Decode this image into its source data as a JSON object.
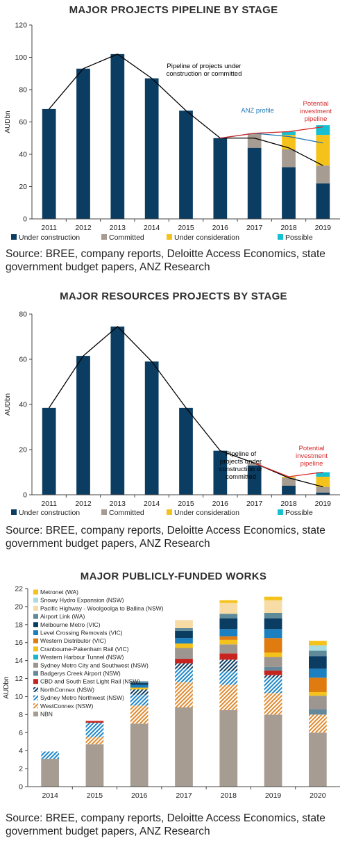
{
  "chart_data": [
    {
      "type": "bar",
      "title": "MAJOR PROJECTS PIPELINE BY STAGE",
      "ylabel": "AUDbn",
      "ylim": [
        0,
        120
      ],
      "yticks": [
        0,
        20,
        40,
        60,
        80,
        100,
        120
      ],
      "categories": [
        "2011",
        "2012",
        "2013",
        "2014",
        "2015",
        "2016",
        "2017",
        "2018",
        "2019"
      ],
      "series": [
        {
          "name": "Under construction",
          "color": "#0b3d62",
          "values": [
            68,
            93,
            102,
            87,
            67,
            50,
            44,
            32,
            22
          ]
        },
        {
          "name": "Committed",
          "color": "#a79c92",
          "values": [
            0,
            0,
            0,
            0,
            0,
            0,
            9,
            11,
            11
          ]
        },
        {
          "name": "Under consideration",
          "color": "#f5c21b",
          "values": [
            0,
            0,
            0,
            0,
            0,
            0,
            0,
            9,
            19
          ]
        },
        {
          "name": "Possible",
          "color": "#16c0d0",
          "values": [
            0,
            0,
            0,
            0,
            0,
            0,
            0,
            2,
            6
          ]
        }
      ],
      "lines": [
        {
          "color": "#000000",
          "points": [
            [
              "2011",
              68
            ],
            [
              "2012",
              93
            ],
            [
              "2013",
              102
            ],
            [
              "2014",
              87
            ],
            [
              "2015",
              67
            ],
            [
              "2016",
              50
            ],
            [
              "2017",
              50
            ],
            [
              "2018",
              44
            ],
            [
              "2019",
              33
            ]
          ]
        },
        {
          "color": "#1f77b4",
          "points": [
            [
              "2016",
              50
            ],
            [
              "2017",
              53
            ],
            [
              "2018",
              51
            ],
            [
              "2019",
              47
            ]
          ]
        },
        {
          "color": "#d42a2a",
          "points": [
            [
              "2016",
              50
            ],
            [
              "2017",
              53
            ],
            [
              "2018",
              54
            ],
            [
              "2019",
              57
            ]
          ]
        }
      ],
      "annotations": [
        {
          "text": [
            "Pipeline of projects under",
            "construction or committed"
          ],
          "color": "#000000"
        },
        {
          "text": [
            "ANZ profile"
          ],
          "color": "#1f77b4"
        },
        {
          "text": [
            "Potential",
            "investment",
            "pipeline"
          ],
          "color": "#d42a2a"
        }
      ],
      "legend_position": "bottom",
      "source": "Source: BREE, company reports, Deloitte Access Economics, state government budget papers, ANZ Research"
    },
    {
      "type": "bar",
      "title": "MAJOR RESOURCES PROJECTS BY STAGE",
      "ylabel": "AUDbn",
      "ylim": [
        0,
        80
      ],
      "yticks": [
        0,
        20,
        40,
        60,
        80
      ],
      "categories": [
        "2011",
        "2012",
        "2013",
        "2014",
        "2015",
        "2016",
        "2017",
        "2018",
        "2019"
      ],
      "series": [
        {
          "name": "Under construction",
          "color": "#0b3d62",
          "values": [
            38.5,
            61.5,
            74.5,
            59,
            38.5,
            19.5,
            13,
            4,
            1
          ]
        },
        {
          "name": "Committed",
          "color": "#a79c92",
          "values": [
            0,
            0,
            0,
            0,
            0,
            0,
            1,
            3.5,
            2.5
          ]
        },
        {
          "name": "Under consideration",
          "color": "#f5c21b",
          "values": [
            0,
            0,
            0,
            0,
            0,
            0,
            0,
            0.5,
            4.5
          ]
        },
        {
          "name": "Possible",
          "color": "#16c0d0",
          "values": [
            0,
            0,
            0,
            0,
            0,
            0,
            0,
            0,
            2
          ]
        }
      ],
      "lines": [
        {
          "color": "#000000",
          "points": [
            [
              "2011",
              38.5
            ],
            [
              "2012",
              61.5
            ],
            [
              "2013",
              74.5
            ],
            [
              "2014",
              59
            ],
            [
              "2015",
              38.5
            ],
            [
              "2016",
              19.5
            ],
            [
              "2017",
              14
            ],
            [
              "2018",
              7.5
            ],
            [
              "2019",
              3.5
            ]
          ]
        },
        {
          "color": "#d42a2a",
          "points": [
            [
              "2017",
              14
            ],
            [
              "2018",
              8
            ],
            [
              "2019",
              10
            ]
          ]
        }
      ],
      "annotations": [
        {
          "text": [
            "Pipeline of",
            "projects under",
            "construction or",
            "committed"
          ],
          "color": "#000000"
        },
        {
          "text": [
            "Potential",
            "investment",
            "pipeline"
          ],
          "color": "#d42a2a"
        }
      ],
      "legend_position": "bottom",
      "source": "Source: BREE, company reports, Deloitte Access Economics, state government budget papers, ANZ Research"
    },
    {
      "type": "bar",
      "title": "MAJOR PUBLICLY-FUNDED WORKS",
      "ylabel": "AUDbn",
      "ylim": [
        0,
        22
      ],
      "yticks": [
        0,
        2,
        4,
        6,
        8,
        10,
        12,
        14,
        16,
        18,
        20,
        22
      ],
      "categories": [
        "2014",
        "2015",
        "2016",
        "2017",
        "2018",
        "2019",
        "2020"
      ],
      "series": [
        {
          "name": "NBN",
          "color": "#a79c92",
          "pattern": "",
          "values": [
            3.1,
            4.7,
            7.0,
            8.8,
            8.5,
            8.0,
            6.0
          ]
        },
        {
          "name": "WestConnex (NSW)",
          "color": "#e08a2e",
          "pattern": "hatch-orange",
          "values": [
            0,
            0.8,
            2.0,
            2.8,
            2.8,
            2.4,
            2.0
          ]
        },
        {
          "name": "Sydney Metro Northwest (NSW)",
          "color": "#1d86c8",
          "pattern": "hatch-blue",
          "values": [
            0.8,
            1.6,
            1.2,
            1.5,
            1.5,
            1.7,
            0
          ]
        },
        {
          "name": "NorthConnex (NSW)",
          "color": "#0b3d62",
          "pattern": "hatch-navy",
          "values": [
            0,
            0,
            0.6,
            0.6,
            1.3,
            0.3,
            0
          ]
        },
        {
          "name": "CBD and South East Light Rail (NSW)",
          "color": "#c8241f",
          "pattern": "",
          "values": [
            0,
            0.2,
            0,
            0.5,
            0.7,
            0.5,
            0
          ]
        },
        {
          "name": "Badgerys Creek Airport (NSW)",
          "color": "#64899b",
          "pattern": "",
          "values": [
            0,
            0,
            0,
            0,
            0,
            0.4,
            0.6
          ]
        },
        {
          "name": "Sydney Metro City and Southwest (NSW)",
          "color": "#9d9590",
          "pattern": "",
          "values": [
            0,
            0,
            0,
            1.2,
            1.0,
            1.1,
            1.5
          ]
        },
        {
          "name": "Western Harbour Tunnel (NSW)",
          "color": "#16b6c8",
          "pattern": "",
          "values": [
            0,
            0,
            0,
            0,
            0,
            0,
            0
          ]
        },
        {
          "name": "Cranbourne-Pakenham Rail (VIC)",
          "color": "#f5c21b",
          "pattern": "",
          "values": [
            0,
            0,
            0.2,
            0.5,
            0.5,
            0.5,
            0.4
          ]
        },
        {
          "name": "Western Distributor (VIC)",
          "color": "#e07b10",
          "pattern": "",
          "values": [
            0,
            0,
            0,
            0,
            0.4,
            1.6,
            1.6
          ]
        },
        {
          "name": "Level Crossing Removals (VIC)",
          "color": "#1c7fc0",
          "pattern": "",
          "values": [
            0,
            0,
            0.3,
            0.6,
            0.8,
            1.0,
            1.0
          ]
        },
        {
          "name": "Melbourne Metro (VIC)",
          "color": "#0b3d62",
          "pattern": "",
          "values": [
            0,
            0,
            0.2,
            0.8,
            1.2,
            1.2,
            1.4
          ]
        },
        {
          "name": "Airport Link (WA)",
          "color": "#5e8a9a",
          "pattern": "",
          "values": [
            0,
            0,
            0.2,
            0.3,
            0.5,
            0.6,
            0.6
          ]
        },
        {
          "name": "Pacific Highway - Woolgoolga to Ballina (NSW)",
          "color": "#f8dca5",
          "pattern": "",
          "values": [
            0,
            0,
            0,
            0.9,
            1.2,
            1.4,
            0
          ]
        },
        {
          "name": "Snowy Hydro Expansion (NSW)",
          "color": "#a8dbe2",
          "pattern": "",
          "values": [
            0,
            0,
            0,
            0,
            0,
            0,
            0.6
          ]
        },
        {
          "name": "Metronet (WA)",
          "color": "#f5c21b",
          "pattern": "",
          "values": [
            0,
            0,
            0,
            0,
            0.3,
            0.4,
            0.5
          ]
        }
      ],
      "legend_position": "top-left",
      "source": "Source: BREE, company reports, Deloitte Access Economics, state government budget papers, ANZ Research"
    }
  ]
}
